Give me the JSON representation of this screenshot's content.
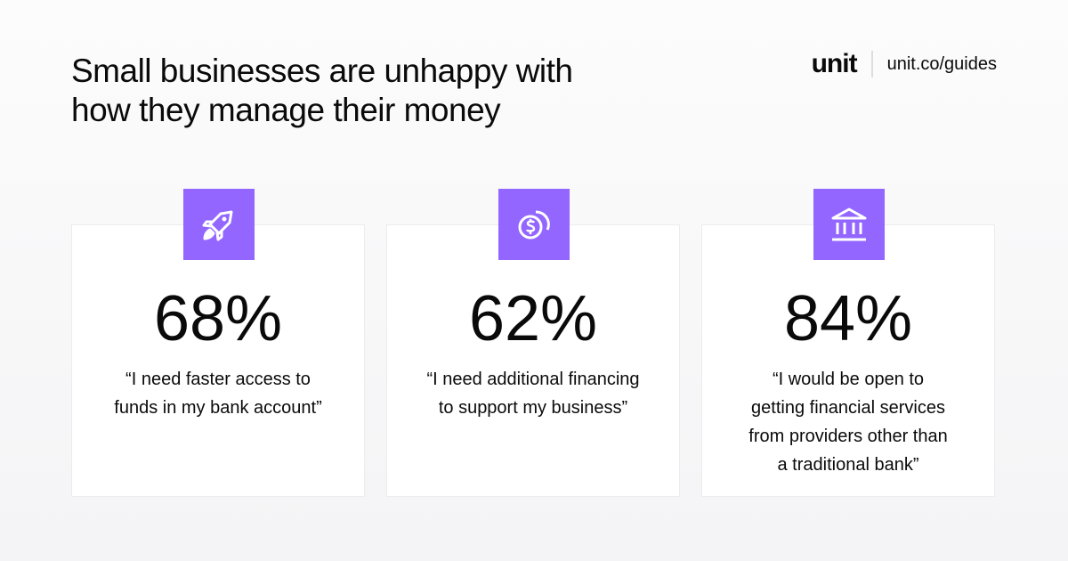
{
  "title": {
    "line1": "Small businesses are unhappy with",
    "line2": "how they manage their money"
  },
  "brand": {
    "logo": "unit",
    "url": "unit.co/guides"
  },
  "accent_color": "#9366ff",
  "stats": [
    {
      "icon": "rocket-icon",
      "value": "68%",
      "quote_lines": [
        "“I need faster access to",
        "funds in my bank account”"
      ]
    },
    {
      "icon": "dollar-coins-icon",
      "value": "62%",
      "quote_lines": [
        "“I need additional financing",
        "to support my business”"
      ]
    },
    {
      "icon": "bank-icon",
      "value": "84%",
      "quote_lines": [
        "“I would be open to",
        "getting financial services",
        "from providers other than",
        "a traditional bank”"
      ]
    }
  ]
}
